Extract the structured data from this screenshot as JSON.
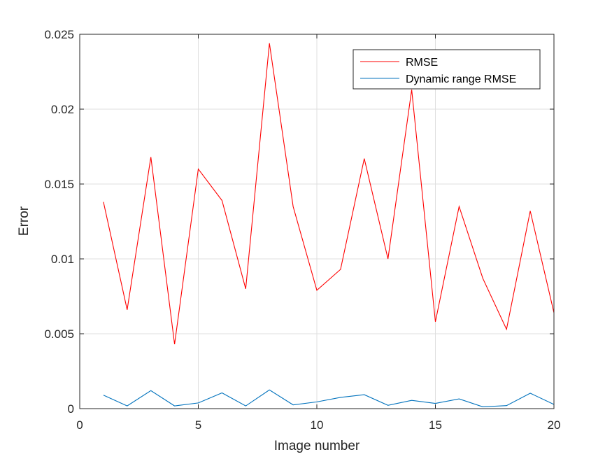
{
  "chart_data": {
    "type": "line",
    "title": "",
    "xlabel": "Image number",
    "ylabel": "Error",
    "xlim": [
      0,
      20
    ],
    "ylim": [
      0,
      0.025
    ],
    "xticks": [
      0,
      5,
      10,
      15,
      20
    ],
    "xtick_labels": [
      "0",
      "5",
      "10",
      "15",
      "20"
    ],
    "yticks": [
      0,
      0.005,
      0.01,
      0.015,
      0.02,
      0.025
    ],
    "ytick_labels": [
      "0",
      "0.005",
      "0.01",
      "0.015",
      "0.02",
      "0.025"
    ],
    "grid": true,
    "legend_position": "top-right",
    "x": [
      1,
      2,
      3,
      4,
      5,
      6,
      7,
      8,
      9,
      10,
      11,
      12,
      13,
      14,
      15,
      16,
      17,
      18,
      19,
      20
    ],
    "series": [
      {
        "name": "RMSE",
        "color": "#ff0000",
        "values": [
          0.0138,
          0.0066,
          0.0168,
          0.0043,
          0.016,
          0.0139,
          0.008,
          0.0244,
          0.0135,
          0.0079,
          0.0093,
          0.0167,
          0.01,
          0.0213,
          0.0058,
          0.0135,
          0.0087,
          0.0053,
          0.0132,
          0.0064
        ]
      },
      {
        "name": "Dynamic range RMSE",
        "color": "#0072bd",
        "values": [
          0.0009,
          0.00018,
          0.0012,
          0.00018,
          0.00038,
          0.00105,
          0.00018,
          0.00125,
          0.00025,
          0.00045,
          0.00075,
          0.00093,
          0.00022,
          0.00055,
          0.00035,
          0.00065,
          0.00012,
          0.0002,
          0.00103,
          0.00028
        ]
      }
    ]
  }
}
